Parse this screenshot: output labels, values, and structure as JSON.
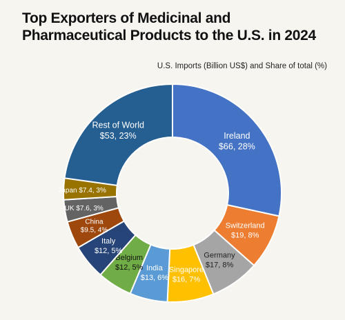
{
  "title": "Top Exporters of Medicinal and Pharmaceutical Products to the U.S. in 2024",
  "subtitle": "U.S. Imports (Billion US$) and Share of total (%)",
  "chart_data": {
    "type": "pie",
    "donut": true,
    "unit": "Billion US$",
    "slices": [
      {
        "label": "Ireland",
        "value": 66,
        "share": 28,
        "text": "$66, 28%",
        "color": "#4472c4",
        "text_color": "#ffffff"
      },
      {
        "label": "Switzerland",
        "value": 19,
        "share": 8,
        "text": "$19, 8%",
        "color": "#ed7d31",
        "text_color": "#ffffff"
      },
      {
        "label": "Germany",
        "value": 17,
        "share": 8,
        "text": "$17, 8%",
        "color": "#a5a5a5",
        "text_color": "#222222"
      },
      {
        "label": "Singapore",
        "value": 16,
        "share": 7,
        "text": "$16, 7%",
        "color": "#ffc000",
        "text_color": "#ffffff"
      },
      {
        "label": "India",
        "value": 13,
        "share": 6,
        "text": "$13, 6%",
        "color": "#5b9bd5",
        "text_color": "#ffffff"
      },
      {
        "label": "Belgium",
        "value": 12,
        "share": 5,
        "text": "$12, 5%",
        "color": "#70ad47",
        "text_color": "#111111"
      },
      {
        "label": "Italy",
        "value": 12,
        "share": 5,
        "text": "$12, 5%",
        "color": "#264478",
        "text_color": "#ffffff"
      },
      {
        "label": "China",
        "value": 9.5,
        "share": 4,
        "text": "$9.5, 4%",
        "color": "#9e480e",
        "text_color": "#ffffff"
      },
      {
        "label": "UK",
        "value": 7.6,
        "share": 3,
        "text": "$7.6, 3%",
        "color": "#636363",
        "text_color": "#ffffff"
      },
      {
        "label": "Japan",
        "value": 7.4,
        "share": 3,
        "text": "$7.4, 3%",
        "color": "#997300",
        "text_color": "#ffffff"
      },
      {
        "label": "Rest of World",
        "value": 53,
        "share": 23,
        "text": "$53, 23%",
        "color": "#255e91",
        "text_color": "#ffffff"
      }
    ]
  }
}
